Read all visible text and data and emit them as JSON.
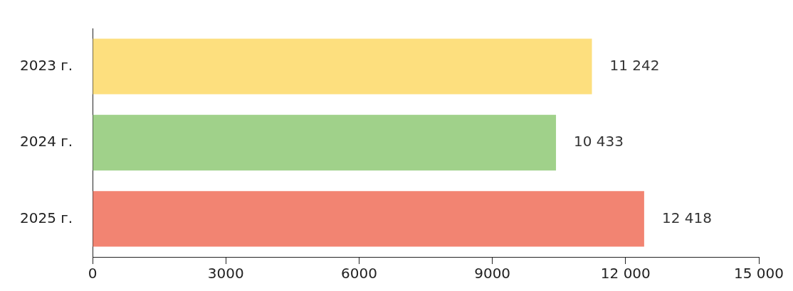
{
  "chart_data": {
    "type": "bar",
    "orientation": "horizontal",
    "categories": [
      "2023 г.",
      "2024 г.",
      "2025 г."
    ],
    "values": [
      11242,
      10433,
      12418
    ],
    "colors": [
      "#fddf7e",
      "#a0d18a",
      "#f28472"
    ],
    "value_labels": [
      "11 242",
      "10 433",
      "12 418"
    ],
    "xlim": [
      0,
      15000
    ],
    "xticks": [
      0,
      3000,
      6000,
      9000,
      {
        "value": 12000,
        "label": "12 000"
      },
      {
        "value": 15000,
        "label": "15 000"
      }
    ],
    "grid": false,
    "legend": false
  }
}
